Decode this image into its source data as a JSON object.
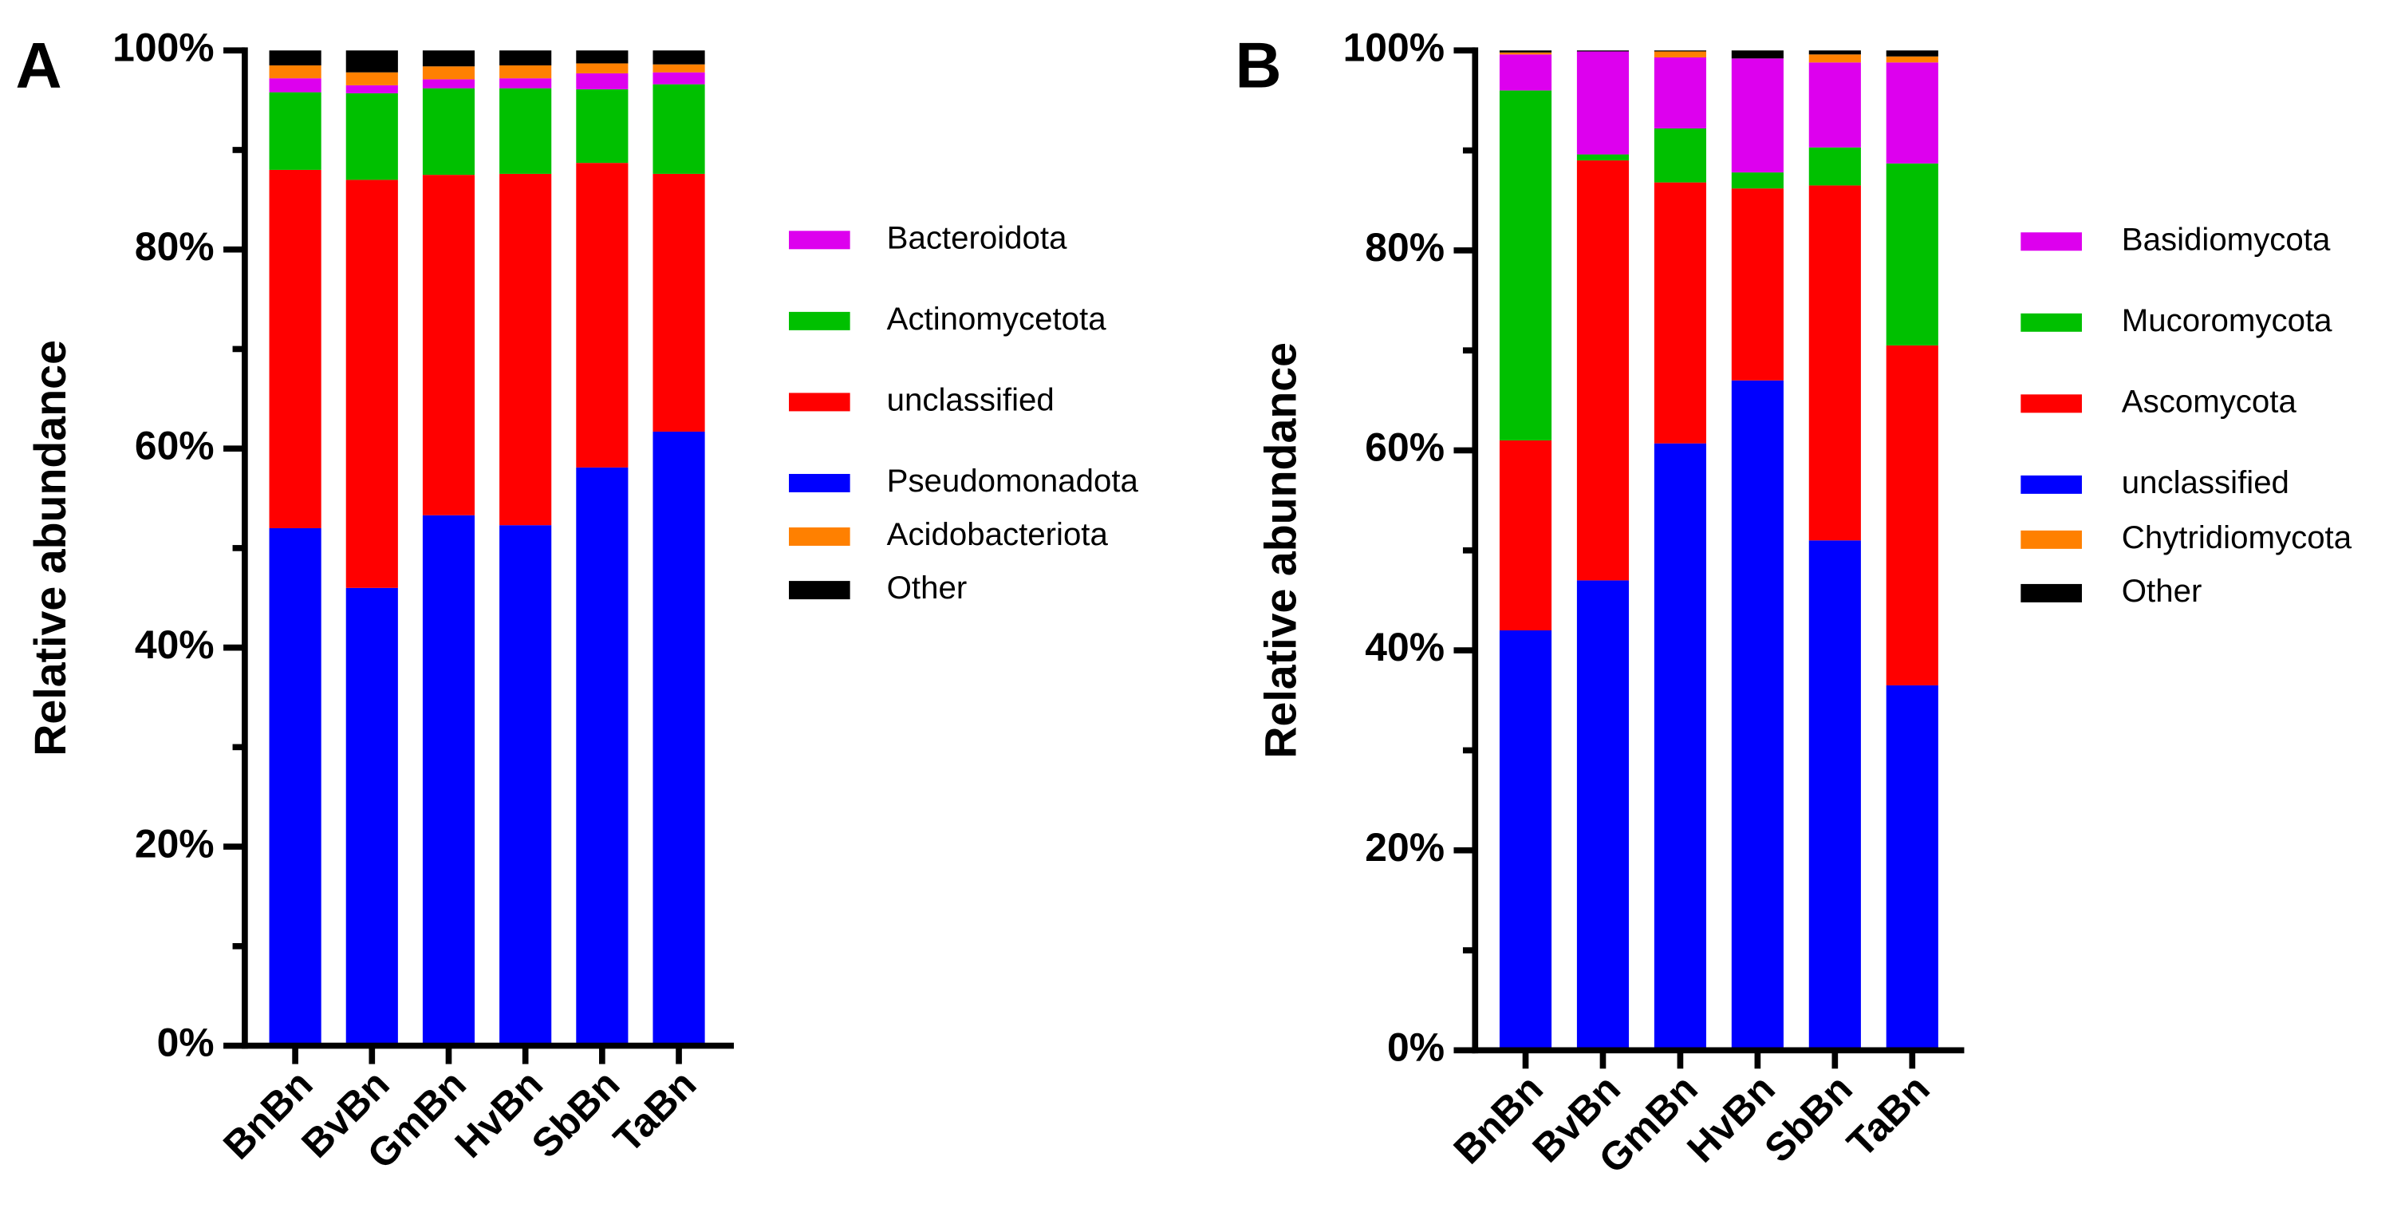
{
  "chart_data": [
    {
      "type": "stacked-bar",
      "label": "A",
      "ylabel": "Relative abundance",
      "categories": [
        "BnBn",
        "BvBn",
        "GmBn",
        "HvBn",
        "SbBn",
        "TaBn"
      ],
      "ylim": [
        0,
        100
      ],
      "yticks": [
        {
          "value": 0,
          "label": "0%"
        },
        {
          "value": 20,
          "label": "20%"
        },
        {
          "value": 40,
          "label": "40%"
        },
        {
          "value": 60,
          "label": "60%"
        },
        {
          "value": 80,
          "label": "80%"
        },
        {
          "value": 100,
          "label": "100%"
        }
      ],
      "stack_order": [
        3,
        2,
        1,
        0,
        4,
        5
      ],
      "series": [
        {
          "name": "Bacteroidota",
          "color": "#dd00ee",
          "values": [
            1.4,
            0.8,
            0.9,
            1.0,
            1.6,
            1.2
          ]
        },
        {
          "name": "Actinomycetota",
          "color": "#00c000",
          "values": [
            7.8,
            8.7,
            8.7,
            8.6,
            7.4,
            9.0
          ]
        },
        {
          "name": "unclassified",
          "color": "#ff0000",
          "values": [
            36,
            41,
            34.2,
            35.3,
            30.6,
            25.9
          ]
        },
        {
          "name": "Pseudomonadota",
          "color": "#0000ff",
          "values": [
            52,
            46,
            53.3,
            52.3,
            58.1,
            61.7
          ]
        },
        {
          "name": "Acidobacteriota",
          "color": "#ff8000",
          "values": [
            1.3,
            1.3,
            1.3,
            1.3,
            1.0,
            0.8
          ]
        },
        {
          "name": "Other",
          "color": "#000000",
          "values": [
            1.5,
            2.2,
            1.6,
            1.5,
            1.3,
            1.4
          ]
        }
      ]
    },
    {
      "type": "stacked-bar",
      "label": "B",
      "ylabel": "Relative abundance",
      "categories": [
        "BnBn",
        "BvBn",
        "GmBn",
        "HvBn",
        "SbBn",
        "TaBn"
      ],
      "ylim": [
        0,
        100
      ],
      "yticks": [
        {
          "value": 0,
          "label": "0%"
        },
        {
          "value": 20,
          "label": "20%"
        },
        {
          "value": 40,
          "label": "40%"
        },
        {
          "value": 60,
          "label": "60%"
        },
        {
          "value": 80,
          "label": "80%"
        },
        {
          "value": 100,
          "label": "100%"
        }
      ],
      "stack_order": [
        3,
        2,
        1,
        0,
        4,
        5
      ],
      "series": [
        {
          "name": "Basidiomycota",
          "color": "#dd00ee",
          "values": [
            3.6,
            10.3,
            7.1,
            11.4,
            8.5,
            10.1
          ]
        },
        {
          "name": "Mucoromycota",
          "color": "#00c000",
          "values": [
            35,
            0.6,
            5.4,
            1.6,
            3.8,
            18.2
          ]
        },
        {
          "name": "Ascomycota",
          "color": "#ff0000",
          "values": [
            19,
            42,
            26.1,
            19.2,
            35.5,
            34
          ]
        },
        {
          "name": "unclassified",
          "color": "#0000ff",
          "values": [
            42,
            47,
            60.7,
            67,
            51,
            36.5
          ]
        },
        {
          "name": "Chytridiomycota",
          "color": "#ff8000",
          "values": [
            0.2,
            0,
            0.6,
            0,
            0.8,
            0.6
          ]
        },
        {
          "name": "Other",
          "color": "#000000",
          "values": [
            0.2,
            0.1,
            0.1,
            0.8,
            0.4,
            0.6
          ]
        }
      ]
    }
  ]
}
